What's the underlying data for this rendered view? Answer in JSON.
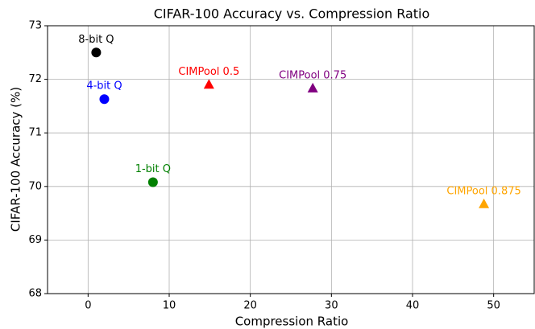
{
  "chart_data": {
    "type": "scatter",
    "title": "CIFAR-100 Accuracy vs. Compression Ratio",
    "x_label": "Compression Ratio",
    "y_label": "CIFAR-100 Accuracy (%)",
    "xlim": [
      -5,
      55
    ],
    "xticks": [
      0,
      10,
      20,
      30,
      40,
      50
    ],
    "ylim": [
      68,
      73
    ],
    "yticks": [
      68,
      69,
      70,
      71,
      72,
      73
    ],
    "grid": true,
    "series": [
      {
        "name": "8-bit Q",
        "color": "#000000",
        "marker": "circle",
        "x": [
          1
        ],
        "values": [
          72.5
        ]
      },
      {
        "name": "4-bit Q",
        "color": "#0000ff",
        "marker": "circle",
        "x": [
          2
        ],
        "values": [
          71.63
        ]
      },
      {
        "name": "1-bit Q",
        "color": "#008000",
        "marker": "circle",
        "x": [
          8
        ],
        "values": [
          70.08
        ]
      },
      {
        "name": "CIMPool 0.5",
        "color": "#ff0000",
        "marker": "triangle",
        "x": [
          14.9
        ],
        "values": [
          71.9
        ]
      },
      {
        "name": "CIMPool 0.75",
        "color": "#800080",
        "marker": "triangle",
        "x": [
          27.7
        ],
        "values": [
          71.83
        ]
      },
      {
        "name": "CIMPool 0.875",
        "color": "#ffa500",
        "marker": "triangle",
        "x": [
          48.8
        ],
        "values": [
          69.67
        ]
      }
    ]
  }
}
